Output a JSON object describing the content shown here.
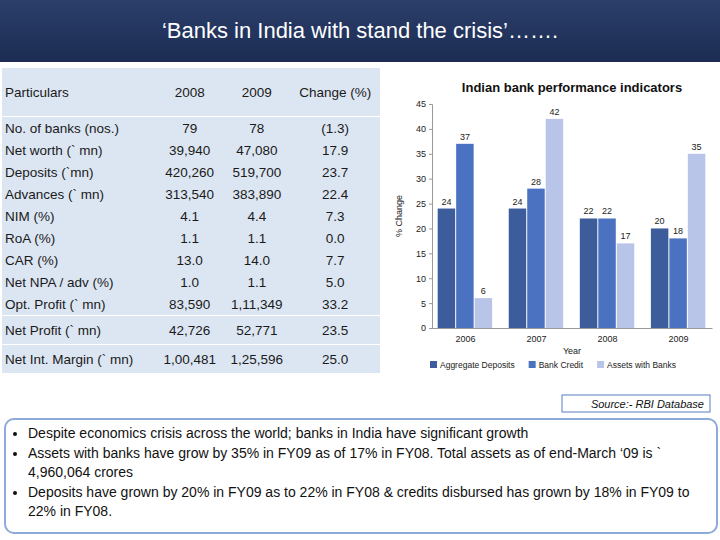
{
  "title": "‘Banks in India with stand the crisis’…….",
  "table": {
    "header": [
      "Particulars",
      "2008",
      "2009",
      "Change (%)"
    ],
    "rows": [
      [
        "No. of banks (nos.)",
        "79",
        "78",
        "(1.3)"
      ],
      [
        "Net worth (` mn)",
        "39,940",
        "47,080",
        "17.9"
      ],
      [
        "Deposits (`mn)",
        "420,260",
        "519,700",
        "23.7"
      ],
      [
        "Advances (` mn)",
        "313,540",
        "383,890",
        "22.4"
      ],
      [
        "NIM (%)",
        "4.1",
        "4.4",
        "7.3"
      ],
      [
        "RoA (%)",
        "1.1",
        "1.1",
        "0.0"
      ],
      [
        "CAR (%)",
        "13.0",
        "14.0",
        "7.7"
      ],
      [
        "Net NPA / adv (%)",
        "1.0",
        "1.1",
        "5.0"
      ],
      [
        "Opt. Profit (` mn)",
        "83,590",
        "1,11,349",
        "33.2"
      ],
      [
        "Net Profit (` mn)",
        "42,726",
        "52,771",
        "23.5"
      ],
      [
        "Net Int. Margin (` mn)",
        "1,00,481",
        "1,25,596",
        "25.0"
      ]
    ]
  },
  "chart_data": {
    "type": "bar",
    "title": "Indian bank performance indicators",
    "x_label": "Year",
    "y_label": "% Change",
    "categories": [
      "2006",
      "2007",
      "2008",
      "2009"
    ],
    "series": [
      {
        "name": "Aggregate Deposits",
        "color": "#3d5c9c",
        "values": [
          24,
          24,
          22,
          20
        ]
      },
      {
        "name": "Bank Credit",
        "color": "#4a72c0",
        "values": [
          37,
          28,
          22,
          18
        ]
      },
      {
        "name": "Assets with Banks",
        "color": "#b8c4e8",
        "values": [
          6,
          42,
          17,
          35
        ]
      }
    ],
    "ylim": [
      0,
      45
    ],
    "yticks": [
      0,
      5,
      10,
      15,
      20,
      25,
      30,
      35,
      40,
      45
    ],
    "grid": false,
    "data_labels": true,
    "legend": "bottom"
  },
  "source": "Source:- RBI Database",
  "bullets": [
    "Despite economics crisis across the world; banks in India have significant growth",
    "Assets  with banks have grow by 35% in FY09 as of 17% in FY08. Total assets as of end-March ‘09 is ` 4,960,064 crores",
    "Deposits have grown by 20% in FY09 as to  22% in FY08 & credits disbursed has grown by 18% in FY09 to 22% in FY08."
  ]
}
